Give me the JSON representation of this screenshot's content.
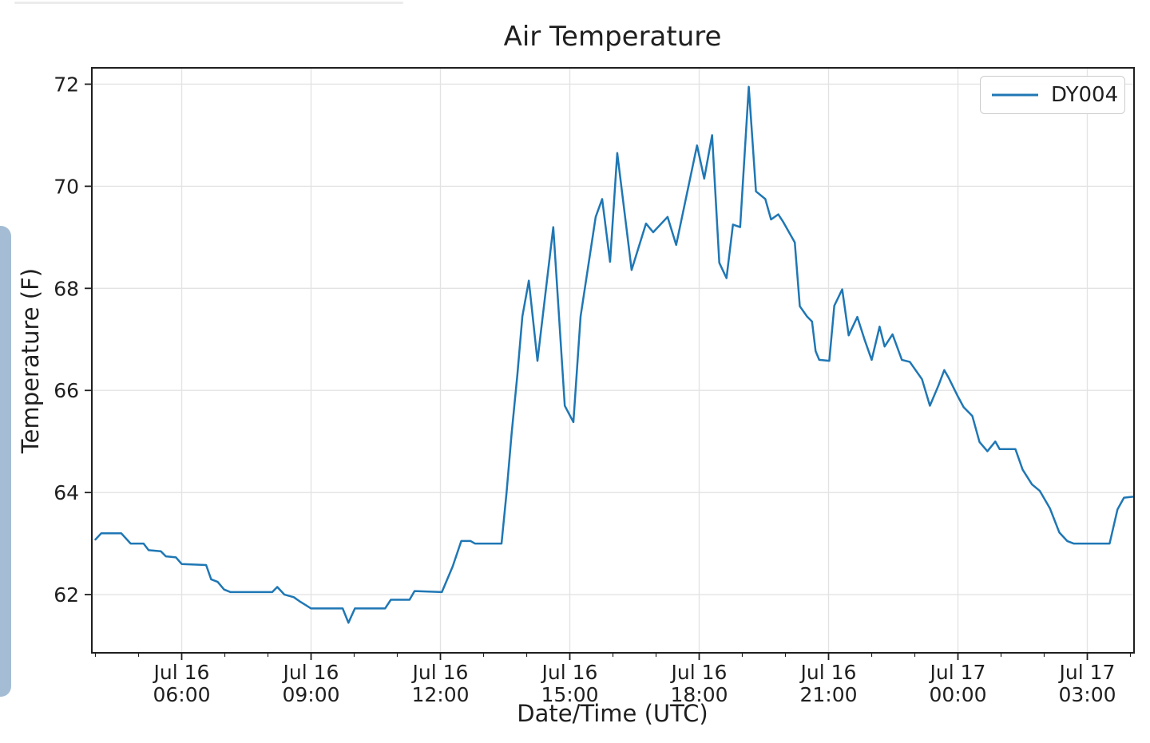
{
  "page": {
    "decorations": {
      "top_divider_color": "#ececec",
      "left_edge_card_color": "#a4bdd5"
    }
  },
  "chart_data": {
    "type": "line",
    "title": "Air Temperature",
    "xlabel": "Date/Time (UTC)",
    "ylabel": "Temperature (F)",
    "grid": true,
    "legend": {
      "position": "upper right",
      "entries": [
        {
          "label": "DY004",
          "color": "#1f77b4"
        }
      ]
    },
    "x_unit": "minutes since Jul 16 00:00 UTC",
    "xlim": [
      235,
      1685
    ],
    "ylim": [
      60.86,
      72.32
    ],
    "yticks": [
      {
        "v": 62,
        "label": "62"
      },
      {
        "v": 64,
        "label": "64"
      },
      {
        "v": 66,
        "label": "66"
      },
      {
        "v": 68,
        "label": "68"
      },
      {
        "v": 70,
        "label": "70"
      },
      {
        "v": 72,
        "label": "72"
      }
    ],
    "xticks": [
      {
        "t": 360,
        "line1": "Jul 16",
        "line2": "06:00"
      },
      {
        "t": 540,
        "line1": "Jul 16",
        "line2": "09:00"
      },
      {
        "t": 720,
        "line1": "Jul 16",
        "line2": "12:00"
      },
      {
        "t": 900,
        "line1": "Jul 16",
        "line2": "15:00"
      },
      {
        "t": 1080,
        "line1": "Jul 16",
        "line2": "18:00"
      },
      {
        "t": 1260,
        "line1": "Jul 16",
        "line2": "21:00"
      },
      {
        "t": 1440,
        "line1": "Jul 17",
        "line2": "00:00"
      },
      {
        "t": 1620,
        "line1": "Jul 17",
        "line2": "03:00"
      }
    ],
    "minor_xtick_every_minutes": 60,
    "colors": {
      "grid": "#e3e3e3",
      "spine": "#1f1f1f",
      "line": "#1f77b4"
    },
    "series": [
      {
        "name": "DY004",
        "color": "#1f77b4",
        "points": [
          [
            240,
            63.08
          ],
          [
            248,
            63.2
          ],
          [
            276,
            63.2
          ],
          [
            289,
            63.0
          ],
          [
            307,
            63.0
          ],
          [
            314,
            62.87
          ],
          [
            331,
            62.85
          ],
          [
            338,
            62.75
          ],
          [
            352,
            62.73
          ],
          [
            360,
            62.6
          ],
          [
            394,
            62.58
          ],
          [
            401,
            62.3
          ],
          [
            410,
            62.25
          ],
          [
            419,
            62.1
          ],
          [
            428,
            62.05
          ],
          [
            486,
            62.05
          ],
          [
            493,
            62.15
          ],
          [
            503,
            62.0
          ],
          [
            516,
            61.95
          ],
          [
            524,
            61.87
          ],
          [
            540,
            61.73
          ],
          [
            584,
            61.73
          ],
          [
            592,
            61.45
          ],
          [
            601,
            61.73
          ],
          [
            643,
            61.73
          ],
          [
            651,
            61.9
          ],
          [
            677,
            61.9
          ],
          [
            684,
            62.07
          ],
          [
            722,
            62.05
          ],
          [
            737,
            62.55
          ],
          [
            749,
            63.05
          ],
          [
            762,
            63.05
          ],
          [
            768,
            63.0
          ],
          [
            805,
            63.0
          ],
          [
            812,
            64.0
          ],
          [
            819,
            65.15
          ],
          [
            827,
            66.3
          ],
          [
            834,
            67.45
          ],
          [
            843,
            68.15
          ],
          [
            855,
            66.58
          ],
          [
            877,
            69.2
          ],
          [
            893,
            65.7
          ],
          [
            905,
            65.38
          ],
          [
            915,
            67.45
          ],
          [
            936,
            69.4
          ],
          [
            945,
            69.75
          ],
          [
            956,
            68.52
          ],
          [
            966,
            70.65
          ],
          [
            986,
            68.36
          ],
          [
            1006,
            69.27
          ],
          [
            1016,
            69.1
          ],
          [
            1036,
            69.4
          ],
          [
            1048,
            68.85
          ],
          [
            1077,
            70.8
          ],
          [
            1087,
            70.15
          ],
          [
            1098,
            71.0
          ],
          [
            1108,
            68.5
          ],
          [
            1118,
            68.2
          ],
          [
            1127,
            69.25
          ],
          [
            1137,
            69.2
          ],
          [
            1149,
            71.95
          ],
          [
            1159,
            69.9
          ],
          [
            1172,
            69.75
          ],
          [
            1180,
            69.35
          ],
          [
            1190,
            69.45
          ],
          [
            1197,
            69.3
          ],
          [
            1205,
            69.1
          ],
          [
            1213,
            68.9
          ],
          [
            1220,
            67.65
          ],
          [
            1230,
            67.45
          ],
          [
            1237,
            67.35
          ],
          [
            1242,
            66.77
          ],
          [
            1247,
            66.6
          ],
          [
            1261,
            66.58
          ],
          [
            1268,
            67.66
          ],
          [
            1279,
            67.98
          ],
          [
            1288,
            67.08
          ],
          [
            1300,
            67.44
          ],
          [
            1310,
            67.0
          ],
          [
            1320,
            66.6
          ],
          [
            1331,
            67.25
          ],
          [
            1338,
            66.86
          ],
          [
            1349,
            67.1
          ],
          [
            1362,
            66.6
          ],
          [
            1373,
            66.56
          ],
          [
            1390,
            66.22
          ],
          [
            1401,
            65.7
          ],
          [
            1413,
            66.1
          ],
          [
            1421,
            66.4
          ],
          [
            1427,
            66.25
          ],
          [
            1440,
            65.88
          ],
          [
            1448,
            65.67
          ],
          [
            1460,
            65.5
          ],
          [
            1470,
            64.99
          ],
          [
            1481,
            64.81
          ],
          [
            1492,
            65.0
          ],
          [
            1498,
            64.85
          ],
          [
            1520,
            64.85
          ],
          [
            1530,
            64.45
          ],
          [
            1543,
            64.16
          ],
          [
            1554,
            64.03
          ],
          [
            1568,
            63.69
          ],
          [
            1581,
            63.22
          ],
          [
            1592,
            63.05
          ],
          [
            1601,
            63.0
          ],
          [
            1651,
            63.0
          ],
          [
            1662,
            63.67
          ],
          [
            1671,
            63.9
          ],
          [
            1685,
            63.92
          ]
        ]
      }
    ]
  }
}
